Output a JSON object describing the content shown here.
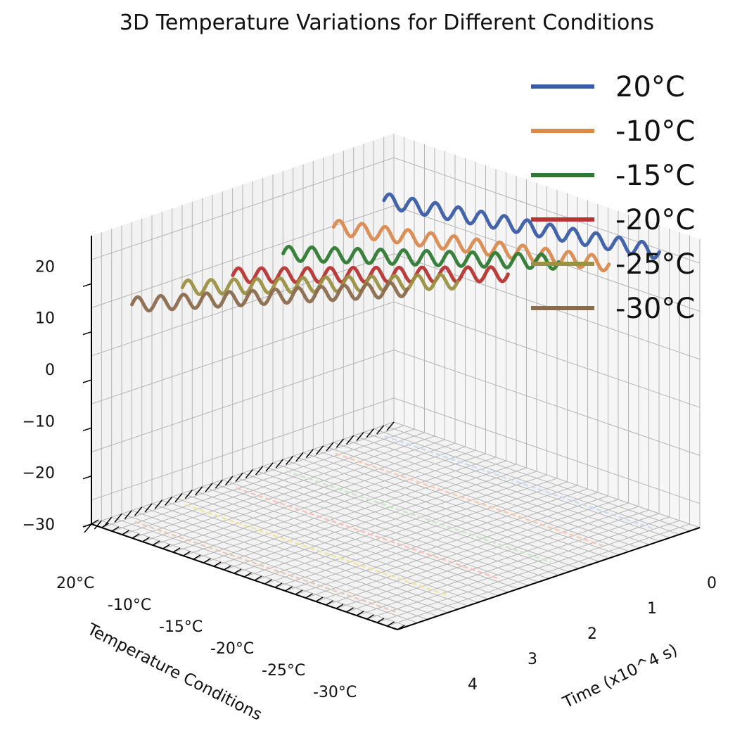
{
  "chart_data": {
    "type": "line",
    "projection": "3d",
    "title": "3D Temperature Variations for Different Conditions",
    "xlabel": "Temperature Conditions",
    "ylabel": "Time (x10^4 s)",
    "zlabel": "",
    "categories": [
      "20°C",
      "-10°C",
      "-15°C",
      "-20°C",
      "-25°C",
      "-30°C"
    ],
    "time_ticks": [
      0,
      1,
      2,
      3,
      4
    ],
    "temperature_ticks": [
      -30,
      -20,
      -10,
      0,
      10,
      20
    ],
    "zlim": [
      -30,
      30
    ],
    "grid": true,
    "legend_position": "top-right",
    "wave_amplitude": 1.5,
    "wave_cycles": 12,
    "series": [
      {
        "name": "20°C",
        "color": "#3a5ca8",
        "shadow_color": "#c8d8ee",
        "time": [
          0,
          4
        ],
        "temp": [
          -1,
          8
        ]
      },
      {
        "name": "-10°C",
        "color": "#da8a4f",
        "shadow_color": "#f4c8b0",
        "time": [
          0,
          4
        ],
        "temp": [
          -3,
          9
        ]
      },
      {
        "name": "-15°C",
        "color": "#2e7a33",
        "shadow_color": "#c9e4c4",
        "time": [
          0,
          4
        ],
        "temp": [
          -5,
          13
        ]
      },
      {
        "name": "-20°C",
        "color": "#b83432",
        "shadow_color": "#f4c0b6",
        "time": [
          0,
          4
        ],
        "temp": [
          -6,
          14
        ]
      },
      {
        "name": "-25°C",
        "color": "#9b9143",
        "shadow_color": "#f2e29a",
        "time": [
          0,
          4
        ],
        "temp": [
          -5,
          16
        ]
      },
      {
        "name": "-30°C",
        "color": "#8b6b4e",
        "shadow_color": "#e3c7b4",
        "time": [
          0,
          4
        ],
        "temp": [
          -5,
          18
        ]
      }
    ]
  }
}
